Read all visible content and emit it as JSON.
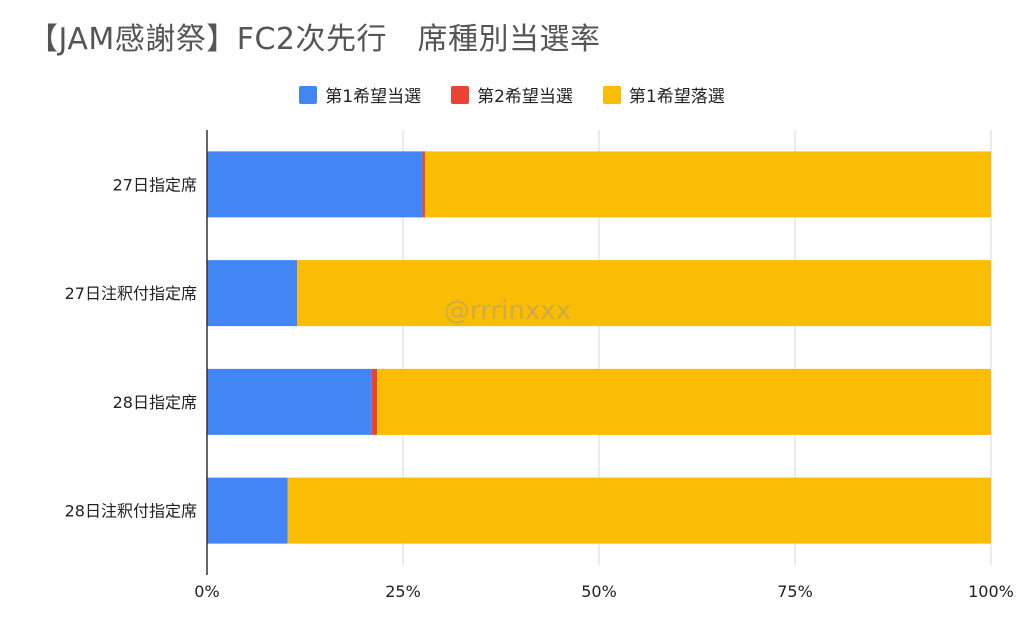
{
  "chart_data": {
    "type": "bar",
    "orientation": "horizontal",
    "stacked": true,
    "normalized": true,
    "title": "【JAM感謝祭】FC2次先行　席種別当選率",
    "xlabel": "",
    "ylabel": "",
    "categories": [
      "27日指定席",
      "27日注釈付指定席",
      "28日指定席",
      "28日注釈付指定席"
    ],
    "series": [
      {
        "name": "第1希望当選",
        "color": "#4285F4",
        "values": [
          27.5,
          11.5,
          21.0,
          10.3
        ]
      },
      {
        "name": "第2希望当選",
        "color": "#EA4335",
        "values": [
          0.3,
          0.0,
          0.7,
          0.0
        ]
      },
      {
        "name": "第1希望落選",
        "color": "#FBBC04",
        "values": [
          72.2,
          88.5,
          78.3,
          89.7
        ]
      }
    ],
    "xlim": [
      0,
      100
    ],
    "xticks": [
      "0%",
      "25%",
      "50%",
      "75%",
      "100%"
    ],
    "grid": true,
    "legend_position": "top",
    "watermark": "@rrrinxxx"
  }
}
